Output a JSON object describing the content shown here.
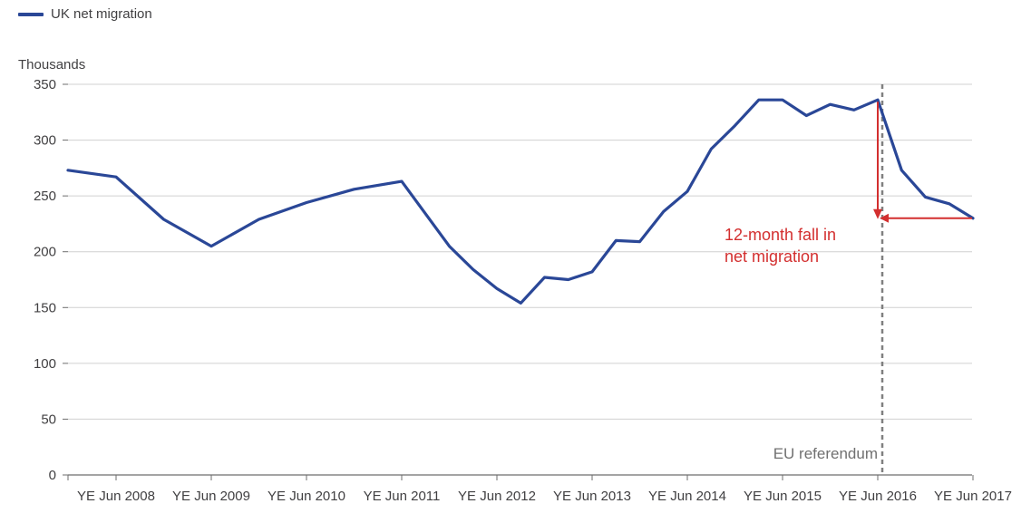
{
  "legend": {
    "label": "UK net migration"
  },
  "colors": {
    "series": "#2a4797",
    "annotation": "#d32f2f",
    "grid": "#d0d0d0",
    "axis": "#6d6d6d",
    "referendum": "#808080"
  },
  "chart_data": {
    "type": "line",
    "ylabel": "Thousands",
    "ylim": [
      0,
      350
    ],
    "y_ticks": [
      0,
      50,
      100,
      150,
      200,
      250,
      300,
      350
    ],
    "x_tick_labels": [
      "YE Jun 2008",
      "YE Jun 2009",
      "YE Jun 2010",
      "YE Jun 2011",
      "YE Jun 2012",
      "YE Jun 2013",
      "YE Jun 2014",
      "YE Jun 2015",
      "YE Jun 2016",
      "YE Jun 2017"
    ],
    "grid": true,
    "legend_position": "top-left",
    "series": [
      {
        "name": "UK net migration",
        "x": [
          2007.5,
          2008.0,
          2008.5,
          2009.0,
          2009.5,
          2010.0,
          2010.5,
          2011.0,
          2011.5,
          2011.75,
          2012.0,
          2012.25,
          2012.5,
          2012.75,
          2013.0,
          2013.25,
          2013.5,
          2013.75,
          2014.0,
          2014.25,
          2014.5,
          2014.75,
          2015.0,
          2015.25,
          2015.5,
          2015.75,
          2016.0,
          2016.25,
          2016.5,
          2016.75,
          2017.0
        ],
        "values": [
          273,
          267,
          229,
          205,
          229,
          244,
          256,
          263,
          205,
          184,
          167,
          154,
          177,
          175,
          182,
          210,
          209,
          236,
          254,
          292,
          313,
          336,
          336,
          322,
          332,
          327,
          336,
          273,
          249,
          243,
          230
        ]
      }
    ],
    "annotations": {
      "fall_label_line1": "12-month fall in",
      "fall_label_line2": "net migration",
      "fall_from": 336,
      "fall_to": 230,
      "fall_x": 2016.0,
      "referendum_label": "EU referendum",
      "referendum_x": 2016.0
    }
  }
}
